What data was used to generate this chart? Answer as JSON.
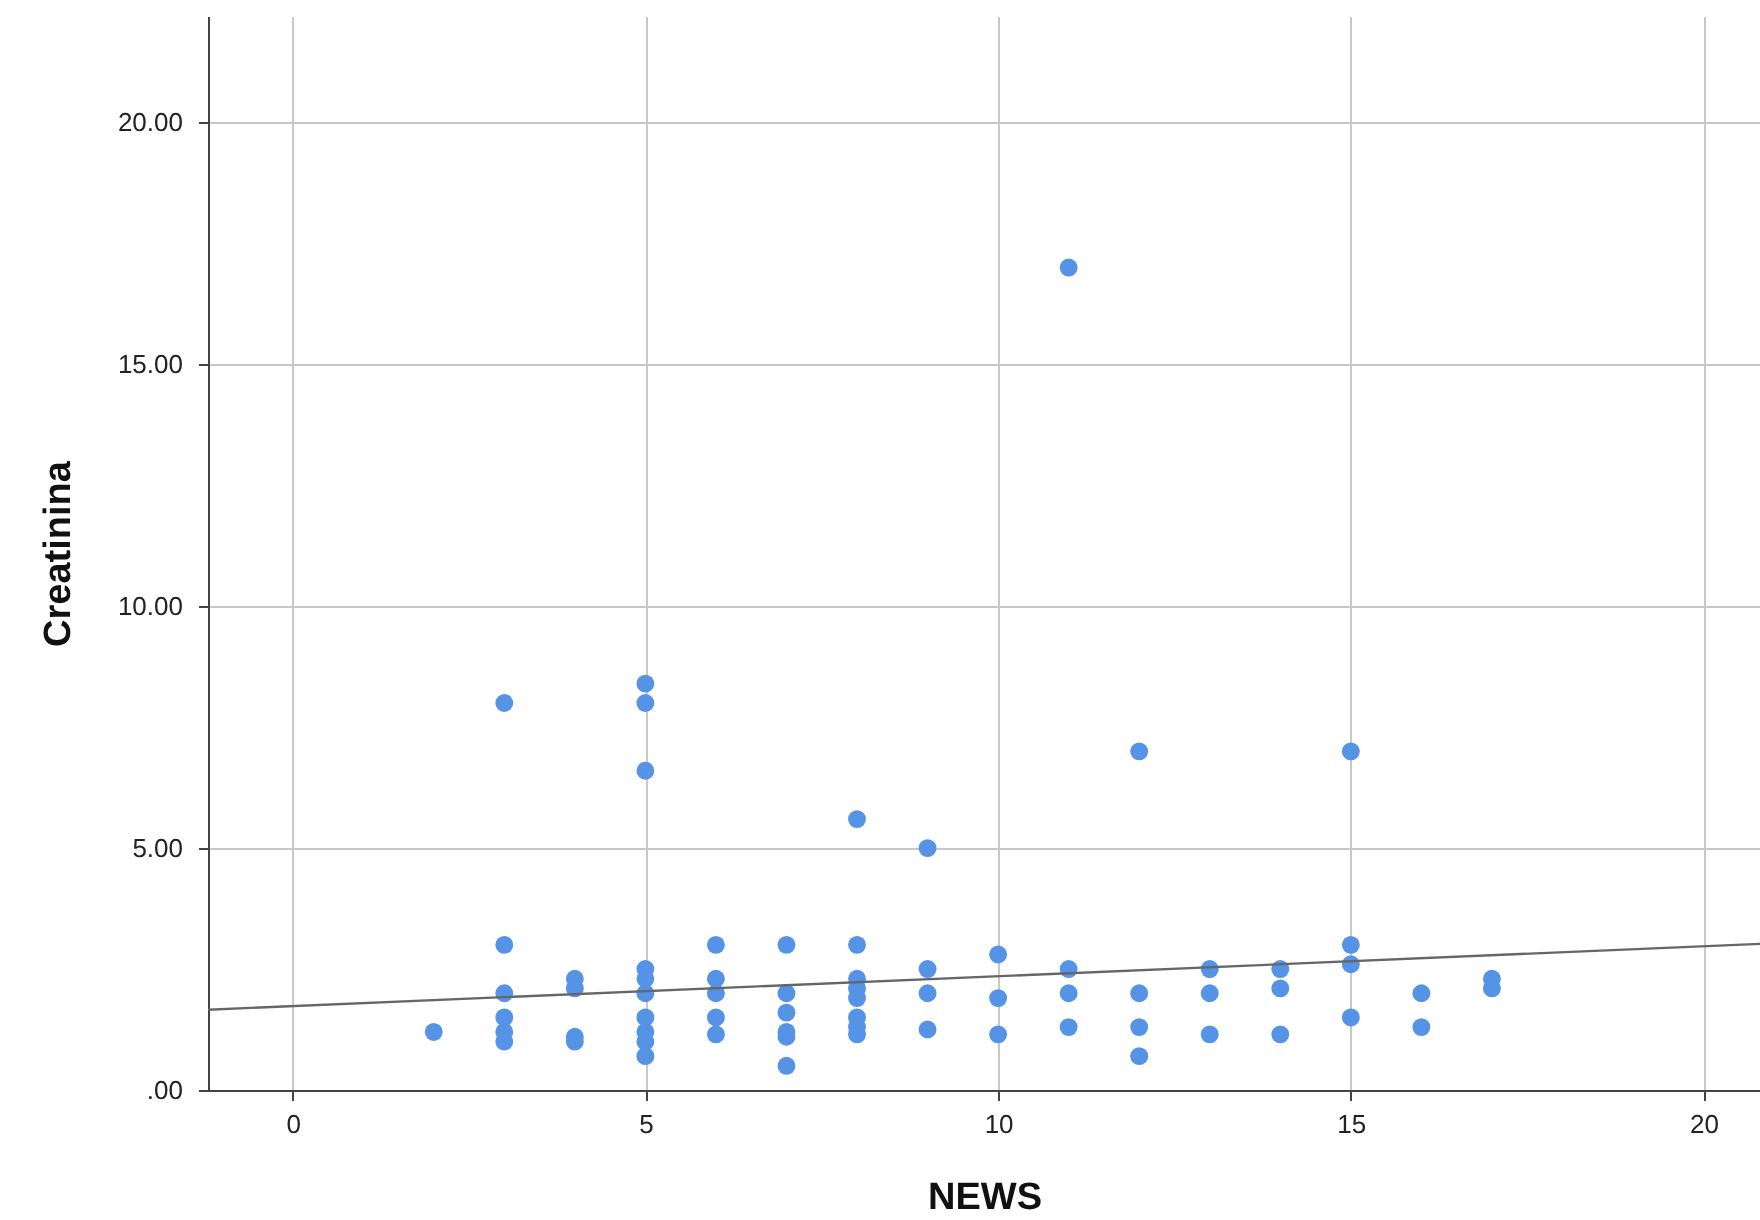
{
  "chart_data": {
    "type": "scatter",
    "xlabel": "NEWS",
    "ylabel": "Creatinina",
    "xlim": [
      -1.2,
      20.8
    ],
    "xticks": [
      0,
      5,
      10,
      15,
      20
    ],
    "ylim": [
      0,
      22.2
    ],
    "yticks": [
      {
        "value": 0,
        "label": ".00"
      },
      {
        "value": 5,
        "label": "5.00"
      },
      {
        "value": 10,
        "label": "10.00"
      },
      {
        "value": 15,
        "label": "15.00"
      },
      {
        "value": 20,
        "label": "20.00"
      }
    ],
    "grid": true,
    "marker": "circle",
    "series": [
      {
        "color": "#5593e6",
        "x": [
          2,
          3,
          3,
          3,
          3,
          3,
          3,
          4,
          4,
          4,
          4,
          5,
          5,
          5,
          5,
          5,
          5,
          5,
          5,
          5,
          5,
          6,
          6,
          6,
          6,
          6,
          7,
          7,
          7,
          7,
          7,
          7,
          8,
          8,
          8,
          8,
          8,
          8,
          8,
          8,
          9,
          9,
          9,
          9,
          10,
          10,
          10,
          11,
          11,
          11,
          11,
          12,
          12,
          12,
          12,
          13,
          13,
          13,
          14,
          14,
          14,
          15,
          15,
          15,
          15,
          16,
          16,
          17,
          17
        ],
        "values": [
          1.2,
          8.0,
          3.0,
          2.0,
          1.5,
          1.2,
          1.0,
          2.3,
          2.1,
          1.1,
          1.0,
          8.4,
          8.0,
          6.6,
          2.5,
          2.3,
          2.0,
          1.5,
          1.2,
          1.0,
          0.7,
          3.0,
          2.3,
          2.0,
          1.5,
          1.15,
          3.0,
          2.0,
          1.6,
          1.2,
          1.1,
          0.5,
          5.6,
          3.0,
          2.3,
          2.1,
          1.9,
          1.5,
          1.3,
          1.15,
          5.0,
          2.5,
          2.0,
          1.25,
          2.8,
          1.9,
          1.15,
          17.0,
          2.5,
          2.0,
          1.3,
          7.0,
          2.0,
          1.3,
          0.7,
          2.5,
          2.0,
          1.15,
          2.5,
          2.1,
          1.15,
          7.0,
          3.0,
          2.6,
          1.5,
          2.0,
          1.3,
          2.3,
          2.1
        ]
      },
      {
        "type": "line",
        "color": "#666666",
        "marker": "none",
        "x": [
          -1.2,
          20.8
        ],
        "values": [
          1.66,
          3.02
        ]
      }
    ]
  }
}
